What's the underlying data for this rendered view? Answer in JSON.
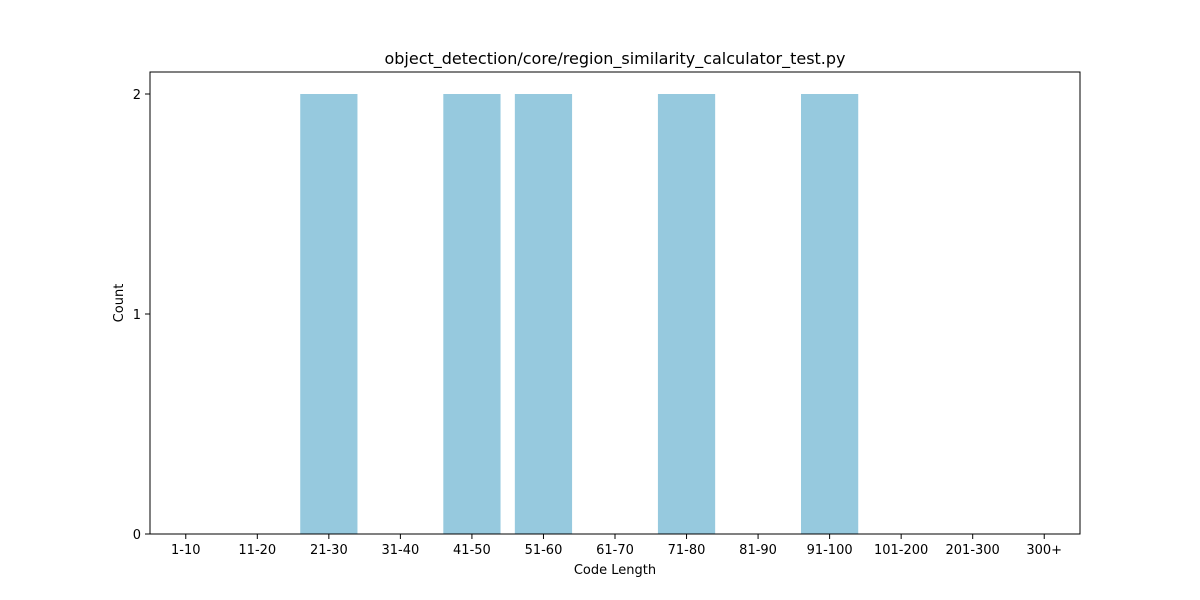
{
  "chart_data": {
    "type": "bar",
    "title": "object_detection/core/region_similarity_calculator_test.py",
    "xlabel": "Code Length",
    "ylabel": "Count",
    "categories": [
      "1-10",
      "11-20",
      "21-30",
      "31-40",
      "41-50",
      "51-60",
      "61-70",
      "71-80",
      "81-90",
      "91-100",
      "101-200",
      "201-300",
      "300+"
    ],
    "values": [
      0,
      0,
      2,
      0,
      2,
      2,
      0,
      2,
      0,
      2,
      0,
      0,
      0
    ],
    "yticks": [
      "0",
      "1",
      "2"
    ],
    "ylim": [
      0,
      2.1
    ],
    "grid": false,
    "legend": "none",
    "bar_color": "#96c9de"
  }
}
